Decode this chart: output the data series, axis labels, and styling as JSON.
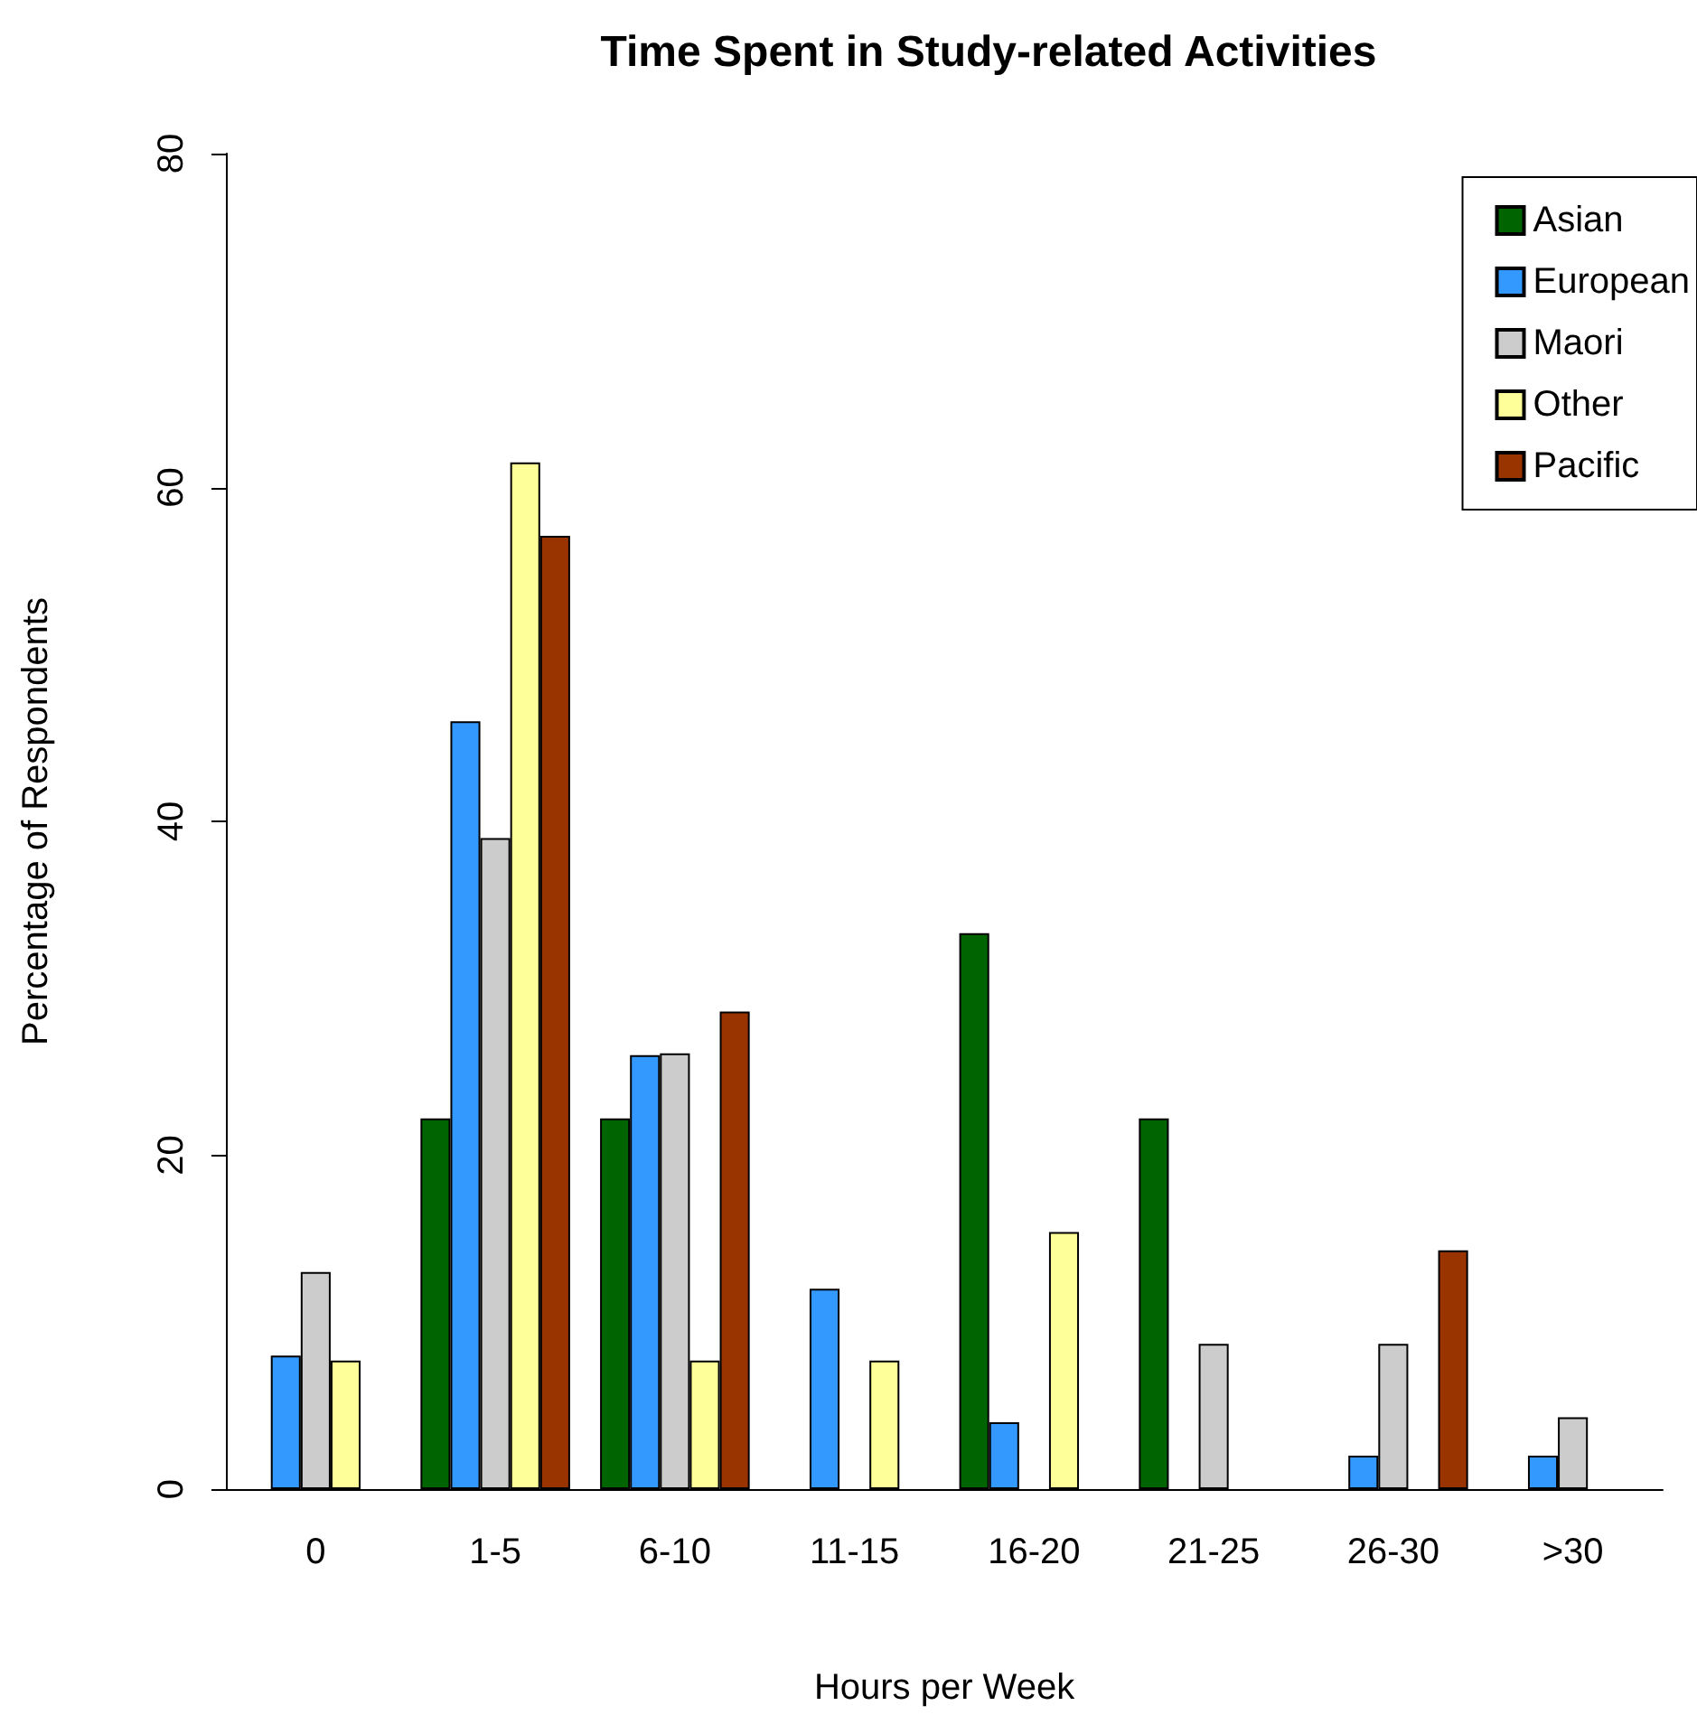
{
  "chart_data": {
    "type": "bar",
    "title": "Time Spent in Study-related Activities",
    "xlabel": "Hours per Week",
    "ylabel": "Percentage of Respondents",
    "categories": [
      "0",
      "1-5",
      "6-10",
      "11-15",
      "16-20",
      "21-25",
      "26-30",
      ">30"
    ],
    "series": [
      {
        "name": "Asian",
        "color": "#006400",
        "values": [
          0,
          22.2,
          22.2,
          0,
          33.3,
          22.2,
          0,
          0
        ]
      },
      {
        "name": "European",
        "color": "#3399ff",
        "values": [
          8,
          46,
          26,
          12,
          4,
          0,
          2,
          2
        ]
      },
      {
        "name": "Maori",
        "color": "#cccccc",
        "values": [
          13,
          39,
          26.1,
          0,
          0,
          8.7,
          8.7,
          4.3
        ]
      },
      {
        "name": "Other",
        "color": "#ffff99",
        "values": [
          7.7,
          61.5,
          7.7,
          7.7,
          15.4,
          0,
          0,
          0
        ]
      },
      {
        "name": "Pacific",
        "color": "#993300",
        "values": [
          0,
          57.1,
          28.6,
          0,
          0,
          0,
          14.3,
          0
        ]
      }
    ],
    "ylim": [
      0,
      80
    ],
    "yticks": [
      0,
      20,
      40,
      60,
      80
    ],
    "grid": false,
    "legend": "top right"
  }
}
